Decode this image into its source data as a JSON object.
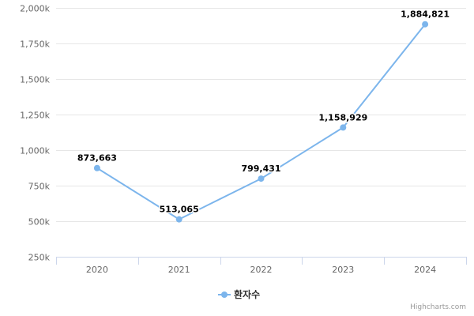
{
  "chart_data": {
    "type": "line",
    "categories": [
      "2020",
      "2021",
      "2022",
      "2023",
      "2024"
    ],
    "series": [
      {
        "name": "환자수",
        "values": [
          873663,
          513065,
          799431,
          1158929,
          1884821
        ],
        "color": "#7cb5ec"
      }
    ],
    "data_labels": [
      "873,663",
      "513,065",
      "799,431",
      "1,158,929",
      "1,884,821"
    ],
    "y_ticks": [
      250000,
      500000,
      750000,
      1000000,
      1250000,
      1500000,
      1750000,
      2000000
    ],
    "y_tick_labels": [
      "250k",
      "500k",
      "750k",
      "1,000k",
      "1,250k",
      "1,500k",
      "1,750k",
      "2,000k"
    ],
    "ylim": [
      250000,
      2000000
    ],
    "grid": true,
    "legend_position": "bottom-center"
  },
  "credits": "Highcharts.com"
}
